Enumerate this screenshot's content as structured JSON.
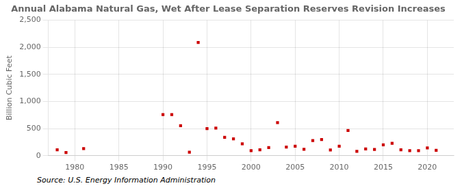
{
  "chart_data": {
    "type": "scatter",
    "title": "Annual Alabama Natural Gas, Wet After Lease Separation Reserves Revision Increases",
    "ylabel": "Billion Cubic Feet",
    "annotation": "Source: U.S. Energy Information Administration",
    "x": [
      1978,
      1979,
      1981,
      1990,
      1991,
      1992,
      1993,
      1994,
      1995,
      1996,
      1997,
      1998,
      1999,
      2000,
      2001,
      2002,
      2003,
      2004,
      2005,
      2006,
      2007,
      2008,
      2009,
      2010,
      2011,
      2012,
      2013,
      2014,
      2015,
      2016,
      2017,
      2018,
      2019,
      2020,
      2021
    ],
    "values": [
      110,
      60,
      130,
      760,
      760,
      555,
      65,
      2090,
      500,
      510,
      340,
      310,
      220,
      95,
      110,
      150,
      610,
      160,
      175,
      120,
      280,
      300,
      105,
      175,
      465,
      80,
      125,
      115,
      200,
      230,
      110,
      95,
      95,
      145,
      100
    ],
    "color": "#cc0000",
    "marker": "square",
    "xlim": [
      1977,
      2023
    ],
    "xticks": [
      1980,
      1985,
      1990,
      1995,
      2000,
      2005,
      2010,
      2015,
      2020
    ],
    "ylim": [
      0,
      2500
    ],
    "yticks": [
      0,
      500,
      {
        "value": 1000,
        "label": "1,000"
      },
      {
        "value": 1500,
        "label": "1,500"
      },
      {
        "value": 2000,
        "label": "2,000"
      },
      {
        "value": 2500,
        "label": "2,500"
      }
    ],
    "grid": true
  }
}
